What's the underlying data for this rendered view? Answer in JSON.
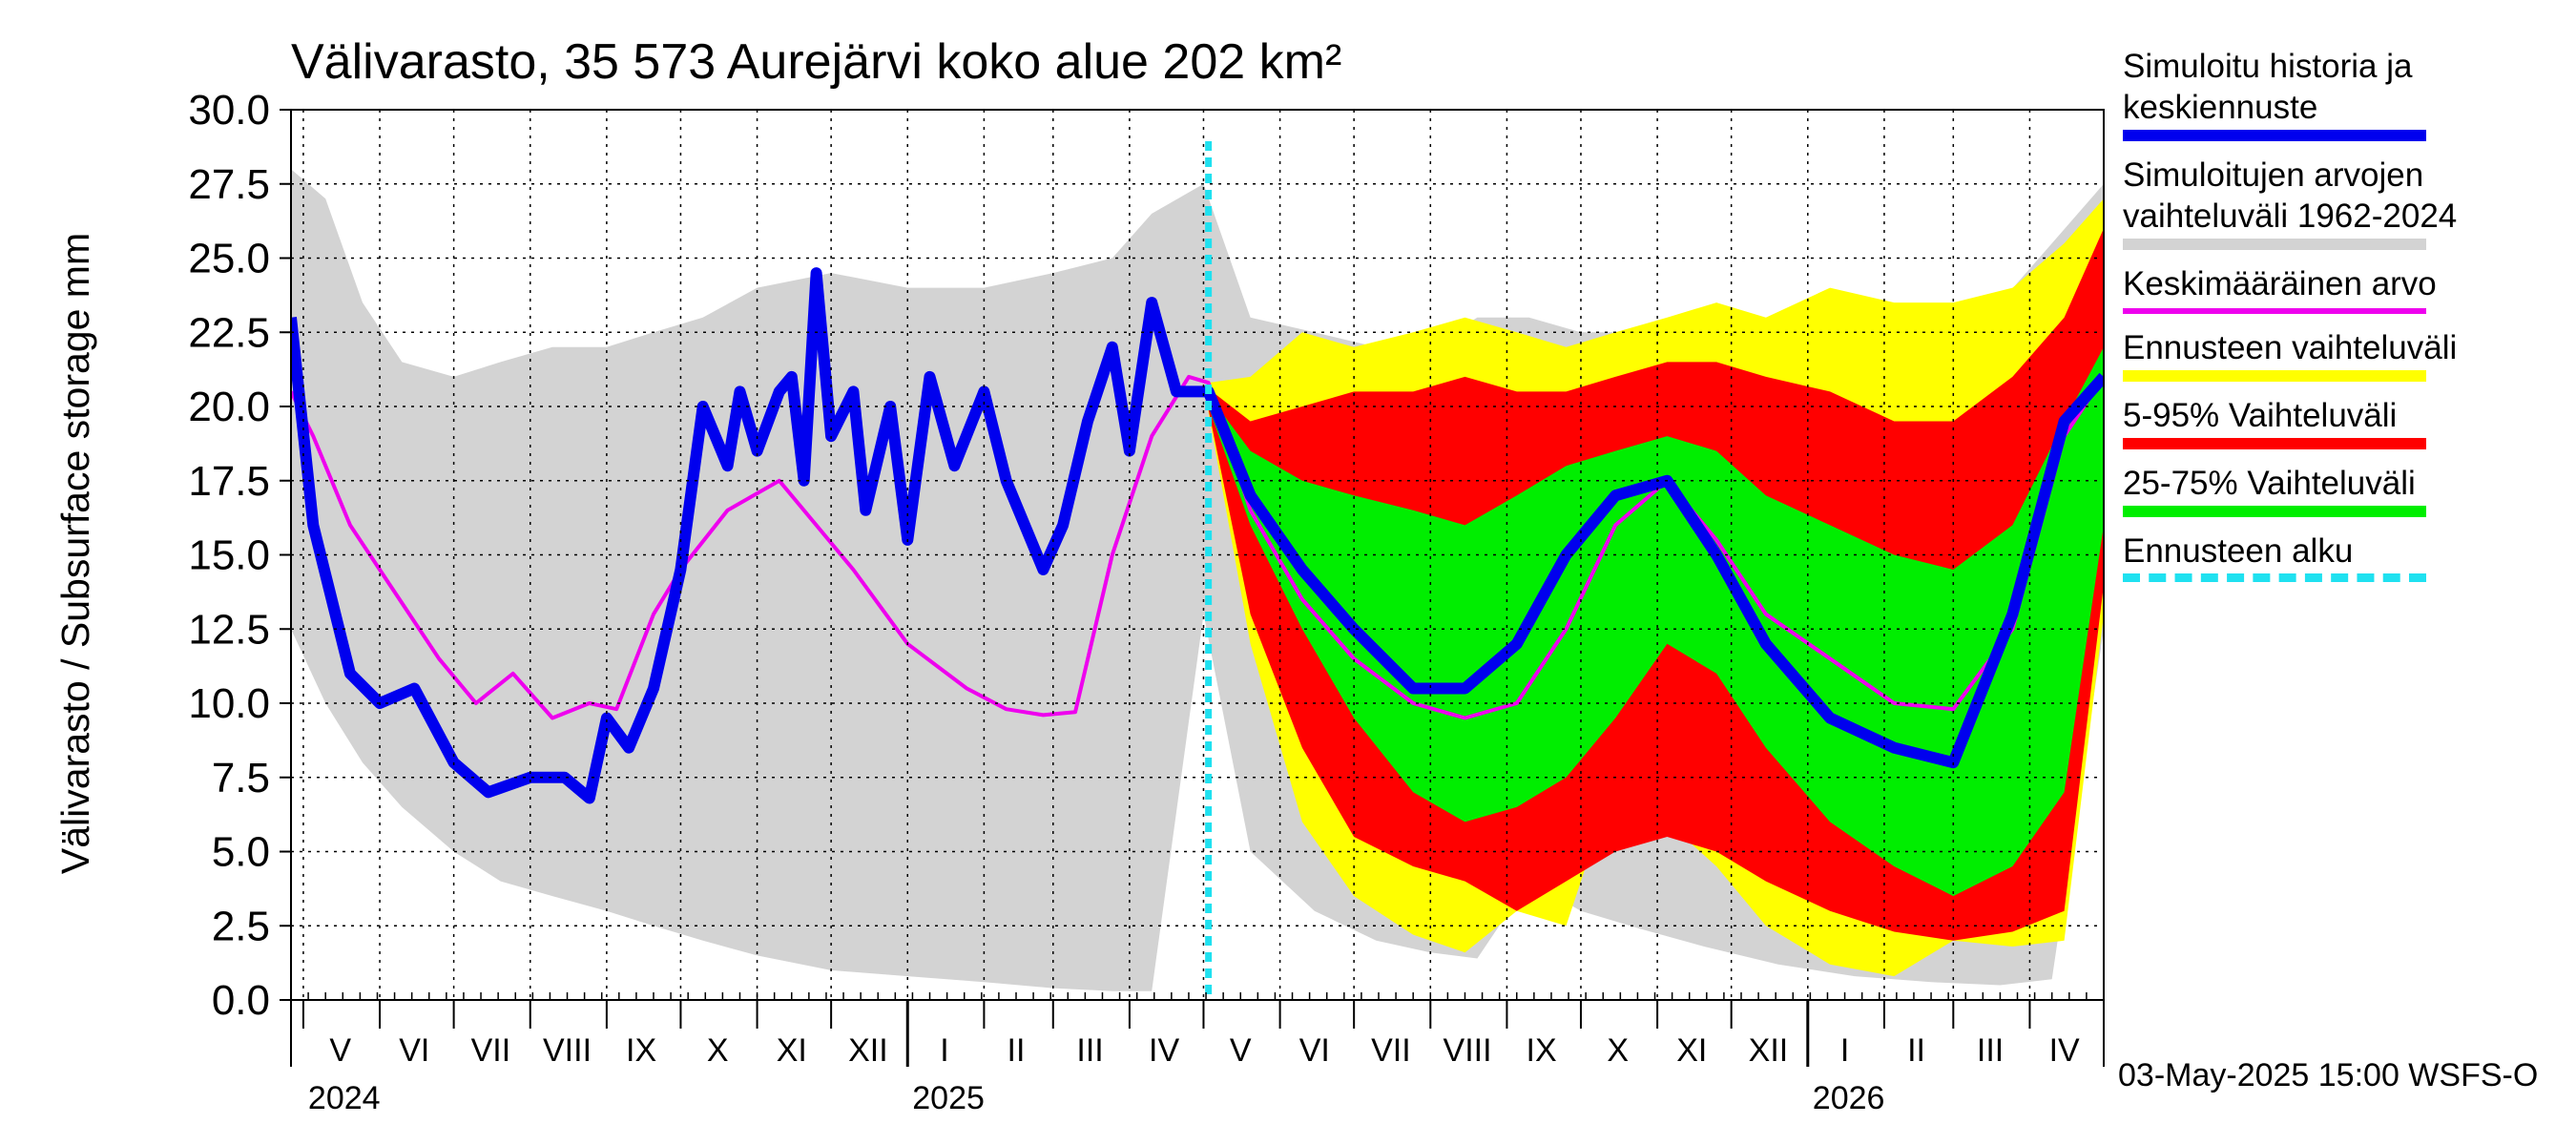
{
  "chart_data": {
    "type": "area",
    "title": "Välivarasto, 35 573 Aurejärvi koko alue 202 km²",
    "ylabel": "Välivarasto / Subsurface storage  mm",
    "ylim": [
      0,
      30
    ],
    "yticks": [
      "0.0",
      "2.5",
      "5.0",
      "7.5",
      "10.0",
      "12.5",
      "15.0",
      "17.5",
      "20.0",
      "22.5",
      "25.0",
      "27.5",
      "30.0"
    ],
    "xlim": [
      "2024-04-26",
      "2026-05-01"
    ],
    "forecast_start": "2025-05-03",
    "month_labels": [
      {
        "label": "V",
        "date": "2024-05-16"
      },
      {
        "label": "VI",
        "date": "2024-06-15"
      },
      {
        "label": "VII",
        "date": "2024-07-16"
      },
      {
        "label": "VIII",
        "date": "2024-08-16"
      },
      {
        "label": "IX",
        "date": "2024-09-15"
      },
      {
        "label": "X",
        "date": "2024-10-16"
      },
      {
        "label": "XI",
        "date": "2024-11-15"
      },
      {
        "label": "XII",
        "date": "2024-12-16"
      },
      {
        "label": "I",
        "date": "2025-01-16"
      },
      {
        "label": "II",
        "date": "2025-02-14"
      },
      {
        "label": "III",
        "date": "2025-03-16"
      },
      {
        "label": "IV",
        "date": "2025-04-15"
      },
      {
        "label": "V",
        "date": "2025-05-16"
      },
      {
        "label": "VI",
        "date": "2025-06-15"
      },
      {
        "label": "VII",
        "date": "2025-07-16"
      },
      {
        "label": "VIII",
        "date": "2025-08-16"
      },
      {
        "label": "IX",
        "date": "2025-09-15"
      },
      {
        "label": "X",
        "date": "2025-10-16"
      },
      {
        "label": "XI",
        "date": "2025-11-15"
      },
      {
        "label": "XII",
        "date": "2025-12-16"
      },
      {
        "label": "I",
        "date": "2026-01-16"
      },
      {
        "label": "II",
        "date": "2026-02-14"
      },
      {
        "label": "III",
        "date": "2026-03-16"
      },
      {
        "label": "IV",
        "date": "2026-04-15"
      }
    ],
    "year_labels": [
      {
        "label": "2024",
        "date": "2024-05-01"
      },
      {
        "label": "2025",
        "date": "2025-01-01"
      },
      {
        "label": "2026",
        "date": "2026-01-01"
      }
    ],
    "month_starts": [
      "2024-05-01",
      "2024-06-01",
      "2024-07-01",
      "2024-08-01",
      "2024-09-01",
      "2024-10-01",
      "2024-11-01",
      "2024-12-01",
      "2025-01-01",
      "2025-02-01",
      "2025-03-01",
      "2025-04-01",
      "2025-05-01",
      "2025-06-01",
      "2025-07-01",
      "2025-08-01",
      "2025-09-01",
      "2025-10-01",
      "2025-11-01",
      "2025-12-01",
      "2026-01-01",
      "2026-02-01",
      "2026-03-01",
      "2026-04-01",
      "2026-05-01"
    ],
    "series": [
      {
        "name": "Simuloitujen arvojen vaihteluväli 1962-2024",
        "color": "#d3d3d3",
        "x": [
          "2024-04-26",
          "2024-05-10",
          "2024-05-25",
          "2024-06-10",
          "2024-07-01",
          "2024-07-20",
          "2024-08-10",
          "2024-09-01",
          "2024-09-20",
          "2024-10-10",
          "2024-11-01",
          "2024-12-01",
          "2025-01-01",
          "2025-02-01",
          "2025-03-01",
          "2025-03-25",
          "2025-04-10",
          "2025-05-01",
          "2025-05-20",
          "2025-06-15",
          "2025-07-10",
          "2025-08-01",
          "2025-08-20",
          "2025-09-10",
          "2025-10-01",
          "2025-10-25",
          "2025-11-20",
          "2025-12-20",
          "2026-01-20",
          "2026-02-20",
          "2026-03-20",
          "2026-04-10",
          "2026-05-01"
        ],
        "upper": [
          28.0,
          27.0,
          23.5,
          21.5,
          21.0,
          21.5,
          22.0,
          22.0,
          22.5,
          23.0,
          24.0,
          24.5,
          24.0,
          24.0,
          24.5,
          25.0,
          26.5,
          27.5,
          23.0,
          22.5,
          22.0,
          22.0,
          23.0,
          23.0,
          22.5,
          22.5,
          22.5,
          22.5,
          22.5,
          22.5,
          23.5,
          25.5,
          27.5
        ],
        "lower": [
          12.5,
          10.0,
          8.0,
          6.5,
          5.0,
          4.0,
          3.5,
          3.0,
          2.5,
          2.0,
          1.5,
          1.0,
          0.8,
          0.6,
          0.4,
          0.3,
          0.3,
          13.0,
          5.0,
          3.0,
          2.0,
          1.6,
          1.4,
          4.0,
          3.0,
          2.4,
          1.8,
          1.2,
          0.8,
          0.6,
          0.5,
          0.7,
          12.5
        ]
      },
      {
        "name": "Ennusteen vaihteluväli",
        "color": "#ffff00",
        "x": [
          "2025-05-03",
          "2025-05-20",
          "2025-06-10",
          "2025-07-01",
          "2025-07-25",
          "2025-08-15",
          "2025-09-05",
          "2025-09-25",
          "2025-10-15",
          "2025-11-05",
          "2025-11-25",
          "2025-12-15",
          "2026-01-10",
          "2026-02-05",
          "2026-03-01",
          "2026-03-25",
          "2026-04-15",
          "2026-05-01"
        ],
        "upper": [
          20.8,
          21.0,
          22.5,
          22.0,
          22.5,
          23.0,
          22.5,
          22.0,
          22.5,
          23.0,
          23.5,
          23.0,
          24.0,
          23.5,
          23.5,
          24.0,
          25.5,
          27.0
        ],
        "lower": [
          19.8,
          12.0,
          6.0,
          3.5,
          2.2,
          1.6,
          3.0,
          2.5,
          7.5,
          6.0,
          4.5,
          2.5,
          1.2,
          0.8,
          2.0,
          1.8,
          2.0,
          13.0
        ]
      },
      {
        "name": "5-95% Vaihteluväli",
        "color": "#ff0000",
        "x": [
          "2025-05-03",
          "2025-05-20",
          "2025-06-10",
          "2025-07-01",
          "2025-07-25",
          "2025-08-15",
          "2025-09-05",
          "2025-09-25",
          "2025-10-15",
          "2025-11-05",
          "2025-11-25",
          "2025-12-15",
          "2026-01-10",
          "2026-02-05",
          "2026-03-01",
          "2026-03-25",
          "2026-04-15",
          "2026-05-01"
        ],
        "upper": [
          20.6,
          19.5,
          20.0,
          20.5,
          20.5,
          21.0,
          20.5,
          20.5,
          21.0,
          21.5,
          21.5,
          21.0,
          20.5,
          19.5,
          19.5,
          21.0,
          23.0,
          26.0
        ],
        "lower": [
          19.9,
          13.0,
          8.5,
          5.5,
          4.5,
          4.0,
          3.0,
          4.0,
          5.0,
          5.5,
          5.0,
          4.0,
          3.0,
          2.3,
          2.0,
          2.3,
          3.0,
          14.0
        ]
      },
      {
        "name": "25-75% Vaihteluväli",
        "color": "#00ee00",
        "x": [
          "2025-05-03",
          "2025-05-20",
          "2025-06-10",
          "2025-07-01",
          "2025-07-25",
          "2025-08-15",
          "2025-09-05",
          "2025-09-25",
          "2025-10-15",
          "2025-11-05",
          "2025-11-25",
          "2025-12-15",
          "2026-01-10",
          "2026-02-05",
          "2026-03-01",
          "2026-03-25",
          "2026-04-15",
          "2026-05-01"
        ],
        "upper": [
          20.4,
          18.5,
          17.5,
          17.0,
          16.5,
          16.0,
          17.0,
          18.0,
          18.5,
          19.0,
          18.5,
          17.0,
          16.0,
          15.0,
          14.5,
          16.0,
          19.5,
          22.0
        ],
        "lower": [
          20.0,
          16.0,
          12.5,
          9.5,
          7.0,
          6.0,
          6.5,
          7.5,
          9.5,
          12.0,
          11.0,
          8.5,
          6.0,
          4.5,
          3.5,
          4.5,
          7.0,
          16.0
        ]
      },
      {
        "name": "Keskimääräinen arvo",
        "color": "#ee00ee",
        "x": [
          "2024-04-26",
          "2024-05-05",
          "2024-05-20",
          "2024-06-05",
          "2024-06-25",
          "2024-07-10",
          "2024-07-25",
          "2024-08-10",
          "2024-08-25",
          "2024-09-05",
          "2024-09-20",
          "2024-10-01",
          "2024-10-20",
          "2024-11-10",
          "2024-11-25",
          "2024-12-10",
          "2025-01-01",
          "2025-01-25",
          "2025-02-10",
          "2025-02-25",
          "2025-03-10",
          "2025-03-25",
          "2025-04-10",
          "2025-04-25",
          "2025-05-03",
          "2025-05-20",
          "2025-06-10",
          "2025-07-01",
          "2025-07-25",
          "2025-08-15",
          "2025-09-05",
          "2025-09-25",
          "2025-10-15",
          "2025-11-05",
          "2025-11-25",
          "2025-12-15",
          "2026-01-10",
          "2026-02-05",
          "2026-03-01",
          "2026-03-25",
          "2026-04-15",
          "2026-05-01"
        ],
        "y": [
          20.5,
          19.0,
          16.0,
          14.0,
          11.5,
          10.0,
          11.0,
          9.5,
          10.0,
          9.8,
          13.0,
          14.5,
          16.5,
          17.5,
          16.0,
          14.5,
          12.0,
          10.5,
          9.8,
          9.6,
          9.7,
          15.0,
          19.0,
          21.0,
          20.8,
          16.5,
          13.5,
          11.5,
          10.0,
          9.5,
          10.0,
          12.5,
          16.0,
          17.5,
          15.5,
          13.0,
          11.5,
          10.0,
          9.8,
          12.5,
          19.0,
          21.0
        ]
      },
      {
        "name": "Simuloitu historia ja keskiennuste",
        "color": "#0000ee",
        "x": [
          "2024-04-26",
          "2024-05-05",
          "2024-05-20",
          "2024-06-01",
          "2024-06-15",
          "2024-07-01",
          "2024-07-15",
          "2024-08-01",
          "2024-08-15",
          "2024-08-25",
          "2024-09-01",
          "2024-09-10",
          "2024-09-20",
          "2024-10-01",
          "2024-10-10",
          "2024-10-20",
          "2024-10-25",
          "2024-11-01",
          "2024-11-10",
          "2024-11-15",
          "2024-11-20",
          "2024-11-25",
          "2024-12-01",
          "2024-12-10",
          "2024-12-15",
          "2024-12-25",
          "2025-01-01",
          "2025-01-10",
          "2025-01-20",
          "2025-02-01",
          "2025-02-10",
          "2025-02-25",
          "2025-03-05",
          "2025-03-15",
          "2025-03-25",
          "2025-04-01",
          "2025-04-10",
          "2025-04-20",
          "2025-05-03",
          "2025-05-20",
          "2025-06-10",
          "2025-07-01",
          "2025-07-25",
          "2025-08-15",
          "2025-09-05",
          "2025-09-25",
          "2025-10-15",
          "2025-11-05",
          "2025-11-25",
          "2025-12-15",
          "2026-01-10",
          "2026-02-05",
          "2026-03-01",
          "2026-03-25",
          "2026-04-15",
          "2026-05-01"
        ],
        "y": [
          23.0,
          16.0,
          11.0,
          10.0,
          10.5,
          8.0,
          7.0,
          7.5,
          7.5,
          6.8,
          9.5,
          8.5,
          10.5,
          14.5,
          20.0,
          18.0,
          20.5,
          18.5,
          20.5,
          21.0,
          17.5,
          24.5,
          19.0,
          20.5,
          16.5,
          20.0,
          15.5,
          21.0,
          18.0,
          20.5,
          17.5,
          14.5,
          16.0,
          19.5,
          22.0,
          18.5,
          23.5,
          20.5,
          20.5,
          17.0,
          14.5,
          12.5,
          10.5,
          10.5,
          12.0,
          15.0,
          17.0,
          17.5,
          15.0,
          12.0,
          9.5,
          8.5,
          8.0,
          13.0,
          19.5,
          21.0
        ]
      }
    ]
  },
  "legend": [
    {
      "label": "Simuloitu historia ja\nkeskiennuste",
      "color": "#0000ee",
      "style": "thick"
    },
    {
      "label": "Simuloitujen arvojen\nvaihteluväli 1962-2024",
      "color": "#d3d3d3",
      "style": "thick"
    },
    {
      "label": "Keskimääräinen arvo",
      "color": "#ee00ee",
      "style": "thin"
    },
    {
      "label": "Ennusteen vaihteluväli",
      "color": "#ffff00",
      "style": "thick"
    },
    {
      "label": "5-95% Vaihteluväli",
      "color": "#ff0000",
      "style": "thick"
    },
    {
      "label": "25-75% Vaihteluväli",
      "color": "#00ee00",
      "style": "thick"
    },
    {
      "label": "Ennusteen alku",
      "color": "#1fe1f0",
      "style": "dashed"
    }
  ],
  "footer": "03-May-2025 15:00 WSFS-O"
}
